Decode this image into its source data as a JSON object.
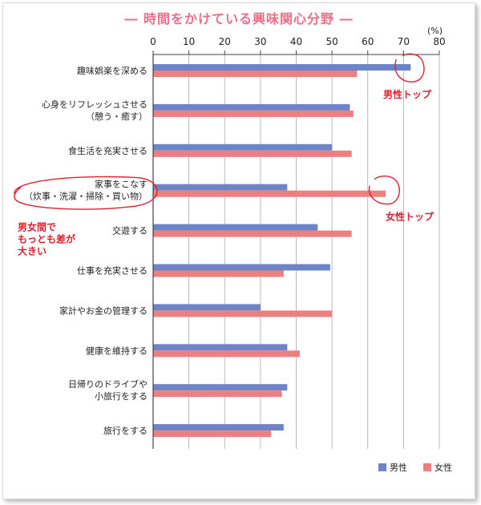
{
  "chart_data": {
    "type": "bar",
    "title": "― 時間をかけている興味関心分野 ―",
    "unit_label": "(%)",
    "xlim": [
      0,
      80
    ],
    "x_ticks": [
      "0",
      "10",
      "20",
      "30",
      "40",
      "50",
      "60",
      "70",
      "80"
    ],
    "categories": [
      [
        "趣味娯楽を深める"
      ],
      [
        "心身をリフレッシュさせる",
        "（憩う・癒す）"
      ],
      [
        "食生活を充実させる"
      ],
      [
        "家事をこなす",
        "（炊事・洗濯・掃除・買い物）"
      ],
      [
        "交遊する"
      ],
      [
        "仕事を充実させる"
      ],
      [
        "家計やお金の管理する"
      ],
      [
        "健康を維持する"
      ],
      [
        "日帰りのドライブや",
        "小旅行をする"
      ],
      [
        "旅行をする"
      ]
    ],
    "series": [
      {
        "name": "男性",
        "color": "#6e84c8",
        "values": [
          72,
          55,
          50,
          37.5,
          46,
          49.5,
          30,
          37.5,
          37.5,
          36.5
        ]
      },
      {
        "name": "女性",
        "color": "#ec8080",
        "values": [
          57,
          56,
          55.5,
          65,
          55.5,
          36.5,
          50,
          41,
          36,
          33
        ]
      }
    ],
    "legend_position": "bottom-right",
    "grid": true,
    "annotations": {
      "male_top": "男性トップ",
      "female_top": "女性トップ",
      "gap_note": [
        "男女間で",
        "もっとも差が",
        "大きい"
      ]
    },
    "annotation_color": "#e0202e"
  }
}
